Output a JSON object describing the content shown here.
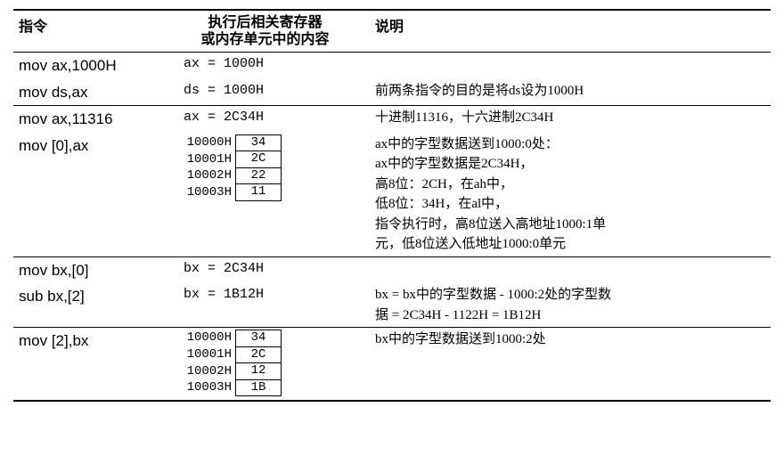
{
  "headers": {
    "col1": "指令",
    "col2_line1": "执行后相关寄存器",
    "col2_line2": "或内存单元中的内容",
    "col3": "说明"
  },
  "sections": [
    {
      "rows": [
        {
          "instr": "mov ax,1000H",
          "result_type": "reg",
          "result": "ax = 1000H",
          "desc": []
        },
        {
          "instr": "mov ds,ax",
          "result_type": "reg",
          "result": "ds = 1000H",
          "desc": [
            "前两条指令的目的是将ds设为1000H"
          ]
        }
      ]
    },
    {
      "rows": [
        {
          "instr": "mov ax,11316",
          "result_type": "reg",
          "result": "ax = 2C34H",
          "desc": [
            "十进制11316，十六进制2C34H"
          ]
        },
        {
          "instr": "mov [0],ax",
          "result_type": "mem",
          "mem": [
            {
              "addr": "10000H",
              "val": "34"
            },
            {
              "addr": "10001H",
              "val": "2C"
            },
            {
              "addr": "10002H",
              "val": "22"
            },
            {
              "addr": "10003H",
              "val": "11"
            }
          ],
          "desc": [
            "ax中的字型数据送到1000:0处：",
            "ax中的字型数据是2C34H，",
            "高8位：2CH，在ah中，",
            "低8位：34H，在al中，",
            "指令执行时，高8位送入高地址1000:1单",
            "元，低8位送入低地址1000:0单元"
          ]
        }
      ]
    },
    {
      "rows": [
        {
          "instr": "mov bx,[0]",
          "result_type": "reg",
          "result": "bx = 2C34H",
          "desc": []
        },
        {
          "instr": "sub  bx,[2]",
          "result_type": "reg",
          "result": "bx = 1B12H",
          "desc": [
            "bx = bx中的字型数据 - 1000:2处的字型数",
            "据 = 2C34H - 1122H = 1B12H"
          ]
        }
      ]
    },
    {
      "rows": [
        {
          "instr": "mov [2],bx",
          "result_type": "mem",
          "mem": [
            {
              "addr": "10000H",
              "val": "34"
            },
            {
              "addr": "10001H",
              "val": "2C"
            },
            {
              "addr": "10002H",
              "val": "12"
            },
            {
              "addr": "10003H",
              "val": "1B"
            }
          ],
          "desc": [
            "bx中的字型数据送到1000:2处"
          ]
        }
      ]
    }
  ]
}
